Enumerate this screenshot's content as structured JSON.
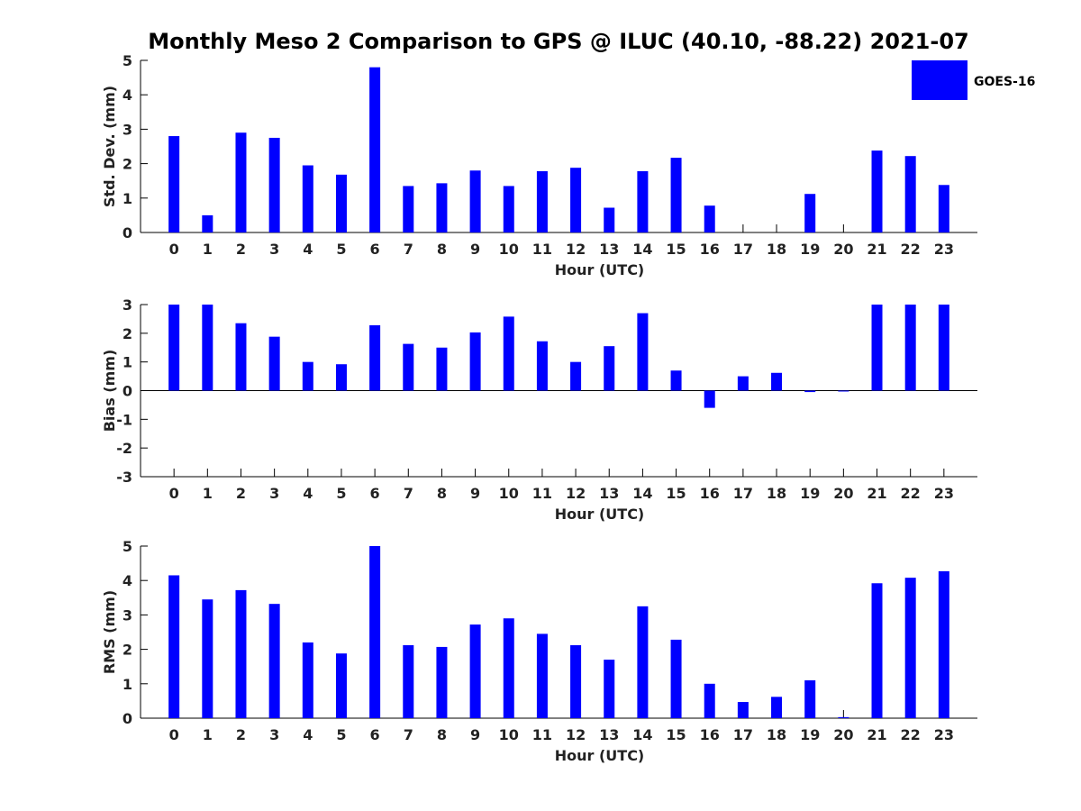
{
  "title": "Monthly Meso 2 Comparison to GPS @ ILUC (40.10, -88.22) 2021-07",
  "legend": {
    "label": "GOES-16",
    "color": "#0000ff"
  },
  "chart_data": [
    {
      "type": "bar",
      "ylabel": "Std. Dev. (mm)",
      "xlabel": "Hour (UTC)",
      "ylim": [
        0,
        5
      ],
      "yticks": [
        0,
        1,
        2,
        3,
        4,
        5
      ],
      "categories": [
        "0",
        "1",
        "2",
        "3",
        "4",
        "5",
        "6",
        "7",
        "8",
        "9",
        "10",
        "11",
        "12",
        "13",
        "14",
        "15",
        "16",
        "17",
        "18",
        "19",
        "20",
        "21",
        "22",
        "23"
      ],
      "series": [
        {
          "name": "GOES-16",
          "color": "#0000ff",
          "values": [
            2.8,
            0.5,
            2.9,
            2.75,
            1.95,
            1.68,
            4.8,
            1.35,
            1.43,
            1.8,
            1.35,
            1.78,
            1.88,
            0.72,
            1.78,
            2.17,
            0.78,
            null,
            null,
            1.12,
            null,
            2.38,
            2.22,
            1.38
          ]
        }
      ],
      "legend": "top-right"
    },
    {
      "type": "bar",
      "ylabel": "Bias (mm)",
      "xlabel": "Hour (UTC)",
      "ylim": [
        -3,
        3
      ],
      "yticks": [
        -3,
        -2,
        -1,
        0,
        1,
        2,
        3
      ],
      "zero_line": true,
      "categories": [
        "0",
        "1",
        "2",
        "3",
        "4",
        "5",
        "6",
        "7",
        "8",
        "9",
        "10",
        "11",
        "12",
        "13",
        "14",
        "15",
        "16",
        "17",
        "18",
        "19",
        "20",
        "21",
        "22",
        "23"
      ],
      "series": [
        {
          "name": "GOES-16",
          "color": "#0000ff",
          "values": [
            3.0,
            3.0,
            2.35,
            1.88,
            1.0,
            0.92,
            2.28,
            1.63,
            1.5,
            2.03,
            2.58,
            1.72,
            1.0,
            1.55,
            2.7,
            0.7,
            -0.6,
            0.5,
            0.62,
            -0.05,
            0.0,
            3.0,
            3.0,
            3.0
          ]
        }
      ]
    },
    {
      "type": "bar",
      "ylabel": "RMS (mm)",
      "xlabel": "Hour (UTC)",
      "ylim": [
        0,
        5
      ],
      "yticks": [
        0,
        1,
        2,
        3,
        4,
        5
      ],
      "categories": [
        "0",
        "1",
        "2",
        "3",
        "4",
        "5",
        "6",
        "7",
        "8",
        "9",
        "10",
        "11",
        "12",
        "13",
        "14",
        "15",
        "16",
        "17",
        "18",
        "19",
        "20",
        "21",
        "22",
        "23"
      ],
      "series": [
        {
          "name": "GOES-16",
          "color": "#0000ff",
          "values": [
            4.15,
            3.45,
            3.72,
            3.32,
            2.2,
            1.88,
            5.0,
            2.12,
            2.07,
            2.72,
            2.9,
            2.45,
            2.12,
            1.7,
            3.25,
            2.28,
            1.0,
            0.47,
            0.62,
            1.1,
            0.03,
            3.92,
            4.08,
            4.27
          ]
        }
      ]
    }
  ]
}
